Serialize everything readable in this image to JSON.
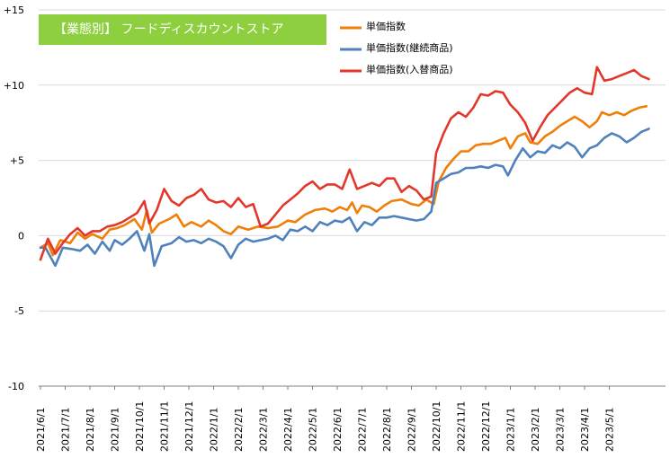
{
  "chart_data": {
    "type": "line",
    "badge": "【業態別】 フードディスカウントストア",
    "colors": {
      "badge_bg": "#8dcf3f",
      "grid": "#d9d9d9",
      "axis": "#7f7f7f"
    },
    "ylim": [
      -10,
      15
    ],
    "y_ticks": [
      {
        "value": 15,
        "label": "+15"
      },
      {
        "value": 10,
        "label": "+10"
      },
      {
        "value": 5,
        "label": "+5"
      },
      {
        "value": 0,
        "label": "0"
      },
      {
        "value": -5,
        "label": "-5"
      },
      {
        "value": -10,
        "label": "-10"
      }
    ],
    "x_labels": [
      "2021/6/1",
      "2021/7/1",
      "2021/8/1",
      "2021/9/1",
      "2021/10/1",
      "2021/11/1",
      "2021/12/1",
      "2022/1/1",
      "2022/2/1",
      "2022/3/1",
      "2022/4/1",
      "2022/5/1",
      "2022/6/1",
      "2022/7/1",
      "2022/8/1",
      "2022/9/1",
      "2022/10/1",
      "2022/11/1",
      "2022/12/1",
      "2023/1/1",
      "2023/2/1",
      "2023/3/1",
      "2023/4/1",
      "2023/5/1"
    ],
    "series": [
      {
        "name": "単価指数",
        "color": "#f07f09",
        "anchors": [
          [
            0,
            -0.8
          ],
          [
            0.3,
            -0.5
          ],
          [
            0.5,
            -1.3
          ],
          [
            0.8,
            -0.3
          ],
          [
            1.2,
            -0.5
          ],
          [
            1.5,
            0.2
          ],
          [
            1.8,
            -0.2
          ],
          [
            2.1,
            0.1
          ],
          [
            2.5,
            -0.2
          ],
          [
            2.8,
            0.4
          ],
          [
            3.1,
            0.5
          ],
          [
            3.4,
            0.7
          ],
          [
            3.8,
            1.1
          ],
          [
            4.1,
            0.4
          ],
          [
            4.3,
            1.7
          ],
          [
            4.5,
            0.2
          ],
          [
            4.8,
            0.8
          ],
          [
            5.2,
            1.1
          ],
          [
            5.5,
            1.4
          ],
          [
            5.8,
            0.6
          ],
          [
            6.1,
            0.9
          ],
          [
            6.5,
            0.6
          ],
          [
            6.8,
            1.0
          ],
          [
            7.1,
            0.7
          ],
          [
            7.4,
            0.3
          ],
          [
            7.7,
            0.1
          ],
          [
            8.0,
            0.6
          ],
          [
            8.4,
            0.4
          ],
          [
            8.8,
            0.6
          ],
          [
            9.2,
            0.5
          ],
          [
            9.6,
            0.6
          ],
          [
            10.0,
            1.0
          ],
          [
            10.3,
            0.9
          ],
          [
            10.7,
            1.4
          ],
          [
            11.1,
            1.7
          ],
          [
            11.5,
            1.8
          ],
          [
            11.8,
            1.6
          ],
          [
            12.1,
            1.9
          ],
          [
            12.4,
            1.7
          ],
          [
            12.6,
            2.2
          ],
          [
            12.8,
            1.5
          ],
          [
            13.0,
            2.0
          ],
          [
            13.3,
            1.9
          ],
          [
            13.6,
            1.6
          ],
          [
            13.9,
            2.0
          ],
          [
            14.2,
            2.3
          ],
          [
            14.6,
            2.4
          ],
          [
            15.0,
            2.1
          ],
          [
            15.3,
            2.0
          ],
          [
            15.6,
            2.4
          ],
          [
            15.9,
            2.1
          ],
          [
            16.1,
            3.6
          ],
          [
            16.4,
            4.5
          ],
          [
            16.7,
            5.1
          ],
          [
            17.0,
            5.6
          ],
          [
            17.3,
            5.6
          ],
          [
            17.6,
            6.0
          ],
          [
            17.9,
            6.1
          ],
          [
            18.2,
            6.1
          ],
          [
            18.5,
            6.3
          ],
          [
            18.8,
            6.5
          ],
          [
            19.0,
            5.8
          ],
          [
            19.3,
            6.6
          ],
          [
            19.6,
            6.8
          ],
          [
            19.8,
            6.2
          ],
          [
            20.1,
            6.1
          ],
          [
            20.4,
            6.6
          ],
          [
            20.7,
            6.9
          ],
          [
            21.0,
            7.3
          ],
          [
            21.3,
            7.6
          ],
          [
            21.6,
            7.9
          ],
          [
            21.9,
            7.6
          ],
          [
            22.2,
            7.2
          ],
          [
            22.5,
            7.6
          ],
          [
            22.7,
            8.2
          ],
          [
            23.0,
            8.0
          ],
          [
            23.3,
            8.2
          ],
          [
            23.6,
            8.0
          ],
          [
            23.9,
            8.3
          ],
          [
            24.2,
            8.5
          ],
          [
            24.5,
            8.6
          ]
        ]
      },
      {
        "name": "単価指数(継続商品)",
        "color": "#4f81bd",
        "anchors": [
          [
            0,
            -0.8
          ],
          [
            0.2,
            -0.8
          ],
          [
            0.6,
            -2.0
          ],
          [
            0.9,
            -0.8
          ],
          [
            1.3,
            -0.9
          ],
          [
            1.6,
            -1.0
          ],
          [
            1.9,
            -0.6
          ],
          [
            2.2,
            -1.2
          ],
          [
            2.5,
            -0.4
          ],
          [
            2.8,
            -1.0
          ],
          [
            3.0,
            -0.3
          ],
          [
            3.3,
            -0.6
          ],
          [
            3.6,
            -0.2
          ],
          [
            3.9,
            0.3
          ],
          [
            4.2,
            -1.0
          ],
          [
            4.4,
            0.1
          ],
          [
            4.6,
            -2.0
          ],
          [
            4.9,
            -0.7
          ],
          [
            5.3,
            -0.5
          ],
          [
            5.6,
            -0.1
          ],
          [
            5.9,
            -0.4
          ],
          [
            6.2,
            -0.3
          ],
          [
            6.5,
            -0.5
          ],
          [
            6.8,
            -0.2
          ],
          [
            7.1,
            -0.4
          ],
          [
            7.4,
            -0.7
          ],
          [
            7.7,
            -1.5
          ],
          [
            8.0,
            -0.6
          ],
          [
            8.3,
            -0.2
          ],
          [
            8.6,
            -0.4
          ],
          [
            8.9,
            -0.3
          ],
          [
            9.2,
            -0.2
          ],
          [
            9.5,
            0.0
          ],
          [
            9.8,
            -0.3
          ],
          [
            10.1,
            0.4
          ],
          [
            10.4,
            0.3
          ],
          [
            10.7,
            0.6
          ],
          [
            11.0,
            0.3
          ],
          [
            11.3,
            0.9
          ],
          [
            11.6,
            0.7
          ],
          [
            11.9,
            1.0
          ],
          [
            12.2,
            0.9
          ],
          [
            12.5,
            1.2
          ],
          [
            12.8,
            0.3
          ],
          [
            13.1,
            0.9
          ],
          [
            13.4,
            0.7
          ],
          [
            13.7,
            1.2
          ],
          [
            14.0,
            1.2
          ],
          [
            14.3,
            1.3
          ],
          [
            14.6,
            1.2
          ],
          [
            14.9,
            1.1
          ],
          [
            15.2,
            1.0
          ],
          [
            15.5,
            1.1
          ],
          [
            15.8,
            1.6
          ],
          [
            16.0,
            3.5
          ],
          [
            16.3,
            3.8
          ],
          [
            16.6,
            4.1
          ],
          [
            16.9,
            4.2
          ],
          [
            17.2,
            4.5
          ],
          [
            17.5,
            4.5
          ],
          [
            17.8,
            4.6
          ],
          [
            18.1,
            4.5
          ],
          [
            18.4,
            4.7
          ],
          [
            18.7,
            4.6
          ],
          [
            18.9,
            4.0
          ],
          [
            19.2,
            5.0
          ],
          [
            19.5,
            5.8
          ],
          [
            19.8,
            5.2
          ],
          [
            20.1,
            5.6
          ],
          [
            20.4,
            5.5
          ],
          [
            20.7,
            6.0
          ],
          [
            21.0,
            5.8
          ],
          [
            21.3,
            6.2
          ],
          [
            21.6,
            5.9
          ],
          [
            21.9,
            5.2
          ],
          [
            22.2,
            5.8
          ],
          [
            22.5,
            6.0
          ],
          [
            22.8,
            6.5
          ],
          [
            23.1,
            6.8
          ],
          [
            23.4,
            6.6
          ],
          [
            23.7,
            6.2
          ],
          [
            24.0,
            6.5
          ],
          [
            24.3,
            6.9
          ],
          [
            24.6,
            7.1
          ]
        ]
      },
      {
        "name": "単価指数(入替商品)",
        "color": "#e2382b",
        "anchors": [
          [
            0,
            -1.6
          ],
          [
            0.3,
            -0.2
          ],
          [
            0.6,
            -1.2
          ],
          [
            0.9,
            -0.5
          ],
          [
            1.2,
            0.1
          ],
          [
            1.5,
            0.5
          ],
          [
            1.8,
            0.0
          ],
          [
            2.1,
            0.3
          ],
          [
            2.4,
            0.3
          ],
          [
            2.7,
            0.6
          ],
          [
            3.0,
            0.7
          ],
          [
            3.3,
            0.9
          ],
          [
            3.6,
            1.2
          ],
          [
            3.9,
            1.5
          ],
          [
            4.2,
            2.3
          ],
          [
            4.4,
            0.8
          ],
          [
            4.7,
            1.7
          ],
          [
            5.0,
            3.1
          ],
          [
            5.3,
            2.3
          ],
          [
            5.6,
            2.0
          ],
          [
            5.9,
            2.5
          ],
          [
            6.2,
            2.7
          ],
          [
            6.5,
            3.1
          ],
          [
            6.8,
            2.4
          ],
          [
            7.1,
            2.2
          ],
          [
            7.4,
            2.3
          ],
          [
            7.7,
            1.9
          ],
          [
            8.0,
            2.5
          ],
          [
            8.3,
            1.9
          ],
          [
            8.6,
            2.1
          ],
          [
            8.9,
            0.6
          ],
          [
            9.2,
            0.8
          ],
          [
            9.5,
            1.4
          ],
          [
            9.8,
            2.0
          ],
          [
            10.1,
            2.4
          ],
          [
            10.4,
            2.8
          ],
          [
            10.7,
            3.3
          ],
          [
            11.0,
            3.6
          ],
          [
            11.3,
            3.1
          ],
          [
            11.6,
            3.4
          ],
          [
            11.9,
            3.4
          ],
          [
            12.2,
            3.1
          ],
          [
            12.5,
            4.4
          ],
          [
            12.8,
            3.1
          ],
          [
            13.1,
            3.3
          ],
          [
            13.4,
            3.5
          ],
          [
            13.7,
            3.3
          ],
          [
            14.0,
            3.8
          ],
          [
            14.3,
            3.8
          ],
          [
            14.6,
            2.9
          ],
          [
            14.9,
            3.3
          ],
          [
            15.2,
            3.0
          ],
          [
            15.5,
            2.4
          ],
          [
            15.8,
            2.6
          ],
          [
            16.0,
            5.5
          ],
          [
            16.3,
            6.8
          ],
          [
            16.6,
            7.8
          ],
          [
            16.9,
            8.2
          ],
          [
            17.2,
            7.9
          ],
          [
            17.5,
            8.5
          ],
          [
            17.8,
            9.4
          ],
          [
            18.1,
            9.3
          ],
          [
            18.4,
            9.6
          ],
          [
            18.7,
            9.5
          ],
          [
            19.0,
            8.7
          ],
          [
            19.3,
            8.2
          ],
          [
            19.6,
            7.5
          ],
          [
            19.9,
            6.3
          ],
          [
            20.2,
            7.2
          ],
          [
            20.5,
            8.0
          ],
          [
            20.8,
            8.5
          ],
          [
            21.1,
            9.0
          ],
          [
            21.4,
            9.5
          ],
          [
            21.7,
            9.8
          ],
          [
            22.0,
            9.5
          ],
          [
            22.3,
            9.4
          ],
          [
            22.5,
            11.2
          ],
          [
            22.8,
            10.3
          ],
          [
            23.1,
            10.4
          ],
          [
            23.4,
            10.6
          ],
          [
            23.7,
            10.8
          ],
          [
            24.0,
            11.0
          ],
          [
            24.3,
            10.6
          ],
          [
            24.6,
            10.4
          ]
        ]
      }
    ]
  }
}
